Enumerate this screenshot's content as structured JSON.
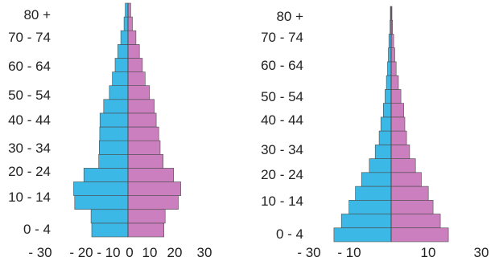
{
  "colors": {
    "male": "#3cb8e6",
    "female": "#cc7fbf",
    "outline": "#4a4a4a"
  },
  "chart_data": [
    {
      "type": "bar",
      "orientation": "horizontal",
      "subtype": "population-pyramid",
      "age_groups": [
        "0 - 4",
        "5 - 9",
        "10 - 14",
        "15 - 19",
        "20 - 24",
        "25 - 29",
        "30 - 34",
        "35 - 39",
        "40 - 44",
        "45 - 49",
        "50 - 54",
        "55 - 59",
        "60 - 64",
        "65 - 69",
        "70 - 74",
        "75 - 79",
        "80 +"
      ],
      "y_tick_labels": [
        "0 - 4",
        "10 - 14",
        "20 - 24",
        "30 - 34",
        "40 - 44",
        "50 - 54",
        "60 - 64",
        "70 - 74",
        "80 +"
      ],
      "x_tick_labels": [
        "- 30",
        "- 20",
        "- 10",
        "0",
        "10",
        "20",
        "30"
      ],
      "xlim": [
        -30,
        30
      ],
      "series": [
        {
          "values": [
            -14.6,
            -14.9,
            -21.5,
            -21.9,
            -17.8,
            -11.8,
            -11.6,
            -11.4,
            -11.3,
            -9.8,
            -7.5,
            -6.3,
            -5.2,
            -4.1,
            -2.9,
            -1.6,
            -1.1
          ]
        },
        {
          "values": [
            14.5,
            15.0,
            20.3,
            21.3,
            18.4,
            14.2,
            13.0,
            12.4,
            11.4,
            10.6,
            8.7,
            6.9,
            5.8,
            4.6,
            3.2,
            1.8,
            1.1
          ]
        }
      ]
    },
    {
      "type": "bar",
      "orientation": "horizontal",
      "subtype": "population-pyramid",
      "age_groups": [
        "0 - 4",
        "5 - 9",
        "10 - 14",
        "15 - 19",
        "20 - 24",
        "25 - 29",
        "30 - 34",
        "35 - 39",
        "40 - 44",
        "45 - 49",
        "50 - 54",
        "55 - 59",
        "60 - 64",
        "65 - 69",
        "70 - 74",
        "75 - 79",
        "80 +"
      ],
      "y_tick_labels": [
        "0 - 4",
        "10 - 14",
        "20 - 24",
        "30 - 34",
        "40 - 44",
        "50 - 54",
        "60 - 64",
        "70 - 74",
        "80 +"
      ],
      "x_tick_labels": [
        "- 30",
        "- 10",
        "10",
        "30"
      ],
      "xlim": [
        -30,
        30
      ],
      "series": [
        {
          "values": [
            -20.5,
            -17.8,
            -15.1,
            -12.8,
            -10.6,
            -7.8,
            -5.7,
            -4.3,
            -3.7,
            -2.8,
            -2.2,
            -1.7,
            -1.3,
            -1.0,
            -0.8,
            -0.4,
            -0.3
          ]
        },
        {
          "values": [
            20.5,
            17.6,
            15.0,
            13.3,
            10.8,
            8.7,
            6.6,
            5.5,
            4.9,
            4.5,
            3.5,
            2.6,
            1.8,
            1.3,
            0.9,
            0.5,
            0.3
          ]
        }
      ]
    }
  ]
}
